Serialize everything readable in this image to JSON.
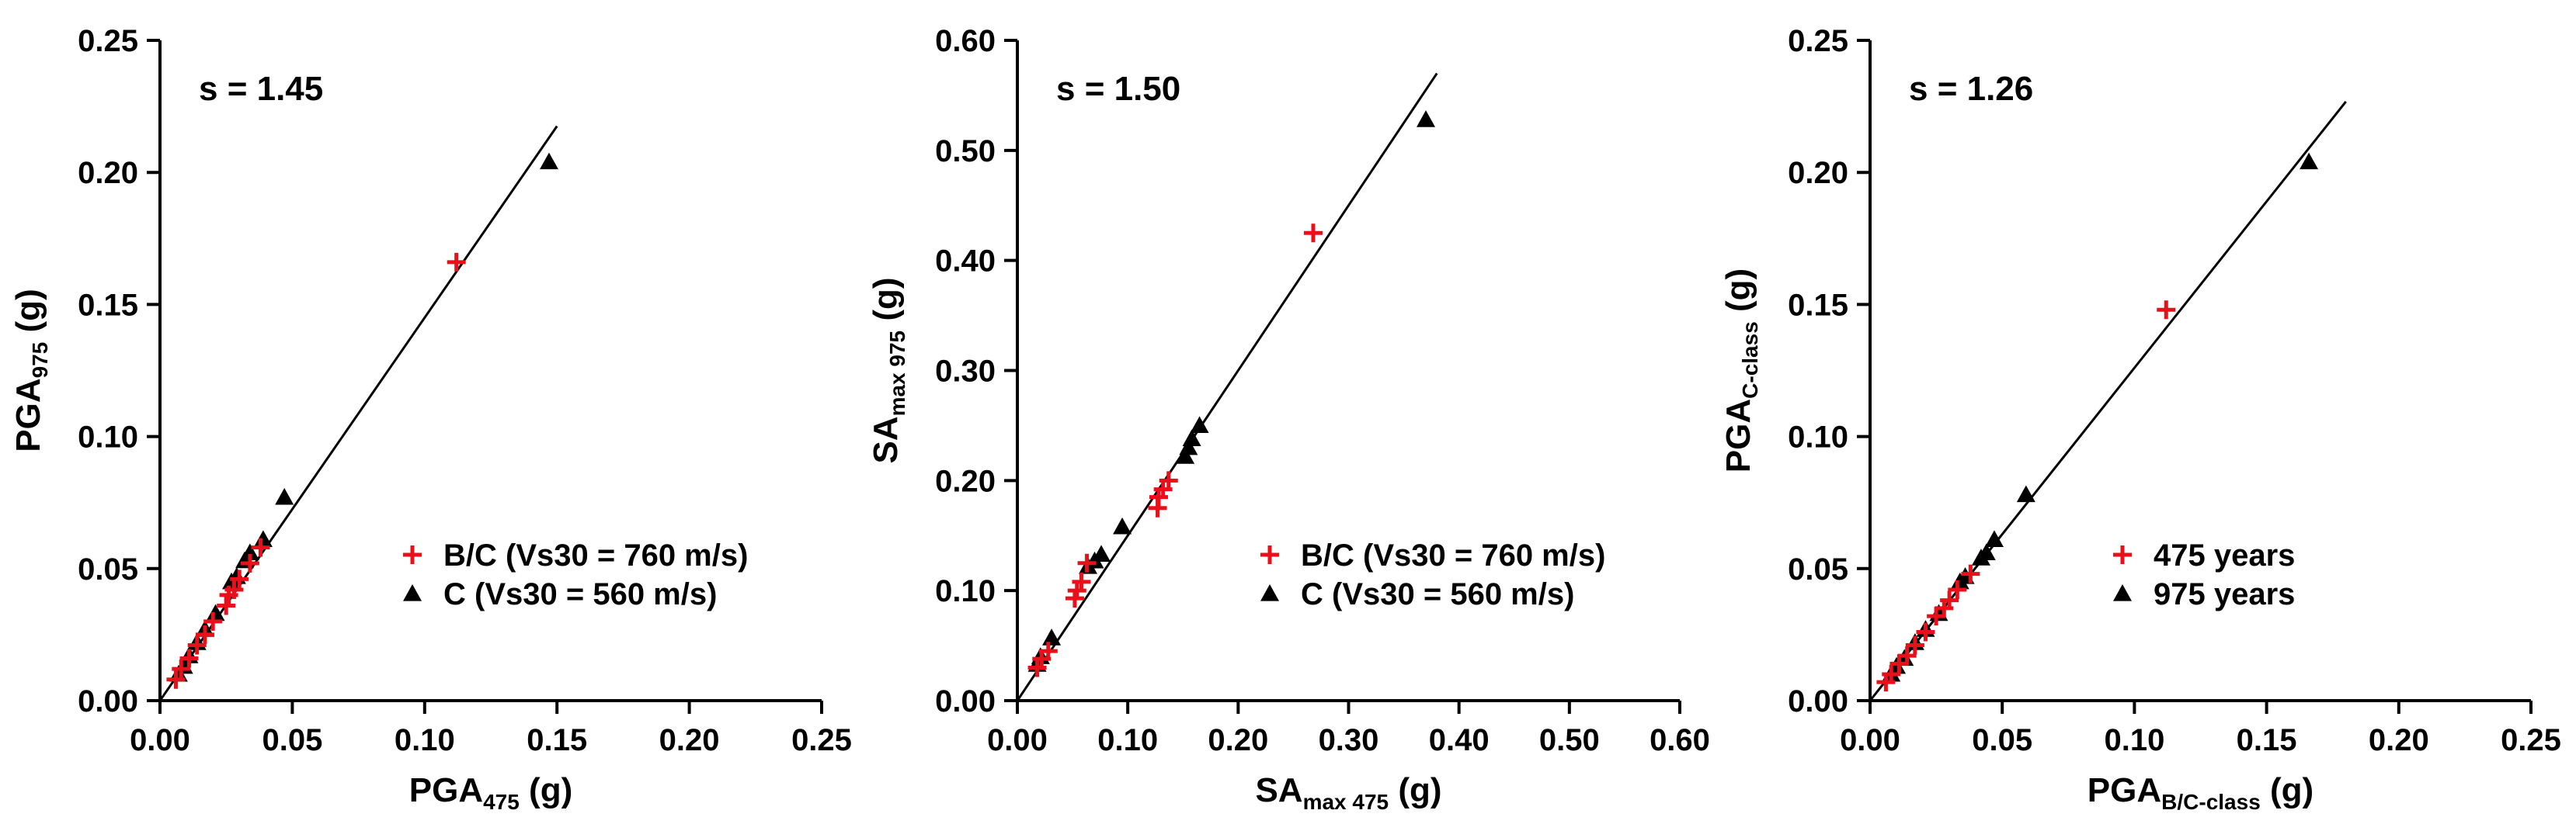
{
  "colors": {
    "series_red": "#e8101a",
    "series_black": "#000000",
    "axis": "#000000",
    "background": "#ffffff"
  },
  "chart_data": [
    {
      "type": "scatter",
      "scale_label": "s = 1.45",
      "slope": 1.45,
      "fit_line_x": [
        0,
        0.15
      ],
      "xlabel_main": "PGA",
      "xlabel_sub": "475",
      "xlabel_unit": " (g)",
      "ylabel_main": "PGA",
      "ylabel_sub": "975",
      "ylabel_unit": " (g)",
      "xlim": [
        0,
        0.25
      ],
      "ylim": [
        0,
        0.25
      ],
      "xticks": [
        0.0,
        0.05,
        0.1,
        0.15,
        0.2,
        0.25
      ],
      "xtick_labels": [
        "0.00",
        "0.05",
        "0.10",
        "0.15",
        "0.20",
        "0.25"
      ],
      "yticks": [
        0.0,
        0.05,
        0.1,
        0.15,
        0.2,
        0.25
      ],
      "ytick_labels": [
        "0.00",
        "0.05",
        "0.10",
        "0.15",
        "0.20",
        "0.25"
      ],
      "legend_position": "center-right",
      "series": [
        {
          "name": "B/C (Vs30 = 760 m/s)",
          "marker": "plus",
          "color": "#e8101a",
          "points": [
            [
              0.112,
              0.166
            ],
            [
              0.038,
              0.058
            ],
            [
              0.034,
              0.052
            ],
            [
              0.03,
              0.046
            ],
            [
              0.028,
              0.042
            ],
            [
              0.026,
              0.04
            ],
            [
              0.025,
              0.036
            ],
            [
              0.02,
              0.03
            ],
            [
              0.017,
              0.025
            ],
            [
              0.014,
              0.021
            ],
            [
              0.011,
              0.016
            ],
            [
              0.008,
              0.012
            ],
            [
              0.006,
              0.008
            ]
          ]
        },
        {
          "name": "C (Vs30 = 560 m/s)",
          "marker": "triangle",
          "color": "#000000",
          "points": [
            [
              0.147,
              0.204
            ],
            [
              0.047,
              0.077
            ],
            [
              0.039,
              0.061
            ],
            [
              0.034,
              0.056
            ],
            [
              0.032,
              0.053
            ],
            [
              0.029,
              0.047
            ],
            [
              0.027,
              0.045
            ],
            [
              0.021,
              0.033
            ],
            [
              0.017,
              0.027
            ],
            [
              0.014,
              0.022
            ],
            [
              0.011,
              0.017
            ],
            [
              0.009,
              0.013
            ],
            [
              0.007,
              0.01
            ]
          ]
        }
      ]
    },
    {
      "type": "scatter",
      "scale_label": "s = 1.50",
      "slope": 1.5,
      "fit_line_x": [
        0,
        0.38
      ],
      "xlabel_main": "SA",
      "xlabel_sub": "max 475",
      "xlabel_unit": " (g)",
      "ylabel_main": "SA",
      "ylabel_sub": "max 975",
      "ylabel_unit": " (g)",
      "xlim": [
        0,
        0.6
      ],
      "ylim": [
        0,
        0.6
      ],
      "xticks": [
        0.0,
        0.1,
        0.2,
        0.3,
        0.4,
        0.5,
        0.6
      ],
      "xtick_labels": [
        "0.00",
        "0.10",
        "0.20",
        "0.30",
        "0.40",
        "0.50",
        "0.60"
      ],
      "yticks": [
        0.0,
        0.1,
        0.2,
        0.3,
        0.4,
        0.5,
        0.6
      ],
      "ytick_labels": [
        "0.00",
        "0.10",
        "0.20",
        "0.30",
        "0.40",
        "0.50",
        "0.60"
      ],
      "legend_position": "center-right",
      "series": [
        {
          "name": "B/C (Vs30 = 760 m/s)",
          "marker": "plus",
          "color": "#e8101a",
          "points": [
            [
              0.268,
              0.425
            ],
            [
              0.137,
              0.2
            ],
            [
              0.132,
              0.192
            ],
            [
              0.128,
              0.185
            ],
            [
              0.127,
              0.175
            ],
            [
              0.063,
              0.125
            ],
            [
              0.058,
              0.108
            ],
            [
              0.054,
              0.1
            ],
            [
              0.052,
              0.093
            ],
            [
              0.028,
              0.045
            ],
            [
              0.022,
              0.038
            ],
            [
              0.018,
              0.03
            ]
          ]
        },
        {
          "name": "C (Vs30 = 560 m/s)",
          "marker": "triangle",
          "color": "#000000",
          "points": [
            [
              0.37,
              0.528
            ],
            [
              0.165,
              0.25
            ],
            [
              0.158,
              0.238
            ],
            [
              0.155,
              0.23
            ],
            [
              0.152,
              0.222
            ],
            [
              0.095,
              0.158
            ],
            [
              0.076,
              0.133
            ],
            [
              0.07,
              0.127
            ],
            [
              0.064,
              0.122
            ],
            [
              0.031,
              0.057
            ],
            [
              0.021,
              0.04
            ],
            [
              0.018,
              0.033
            ]
          ]
        }
      ]
    },
    {
      "type": "scatter",
      "scale_label": "s = 1.26",
      "slope": 1.26,
      "fit_line_x": [
        0,
        0.18
      ],
      "xlabel_main": "PGA",
      "xlabel_sub": "B/C-class",
      "xlabel_unit": " (g)",
      "ylabel_main": "PGA",
      "ylabel_sub": "C-class",
      "ylabel_unit": " (g)",
      "xlim": [
        0,
        0.25
      ],
      "ylim": [
        0,
        0.25
      ],
      "xticks": [
        0.0,
        0.05,
        0.1,
        0.15,
        0.2,
        0.25
      ],
      "xtick_labels": [
        "0.00",
        "0.05",
        "0.10",
        "0.15",
        "0.20",
        "0.25"
      ],
      "yticks": [
        0.0,
        0.05,
        0.1,
        0.15,
        0.2,
        0.25
      ],
      "ytick_labels": [
        "0.00",
        "0.05",
        "0.10",
        "0.15",
        "0.20",
        "0.25"
      ],
      "legend_position": "center-right",
      "series": [
        {
          "name": "475 years",
          "marker": "plus",
          "color": "#e8101a",
          "points": [
            [
              0.112,
              0.148
            ],
            [
              0.038,
              0.048
            ],
            [
              0.033,
              0.042
            ],
            [
              0.03,
              0.038
            ],
            [
              0.028,
              0.035
            ],
            [
              0.025,
              0.032
            ],
            [
              0.021,
              0.026
            ],
            [
              0.017,
              0.021
            ],
            [
              0.014,
              0.017
            ],
            [
              0.011,
              0.014
            ],
            [
              0.008,
              0.01
            ],
            [
              0.006,
              0.007
            ]
          ]
        },
        {
          "name": "975 years",
          "marker": "triangle",
          "color": "#000000",
          "points": [
            [
              0.166,
              0.204
            ],
            [
              0.059,
              0.078
            ],
            [
              0.047,
              0.061
            ],
            [
              0.044,
              0.056
            ],
            [
              0.042,
              0.054
            ],
            [
              0.036,
              0.047
            ],
            [
              0.034,
              0.045
            ],
            [
              0.026,
              0.033
            ],
            [
              0.021,
              0.027
            ],
            [
              0.017,
              0.022
            ],
            [
              0.013,
              0.016
            ],
            [
              0.01,
              0.013
            ],
            [
              0.008,
              0.01
            ]
          ]
        }
      ]
    }
  ]
}
